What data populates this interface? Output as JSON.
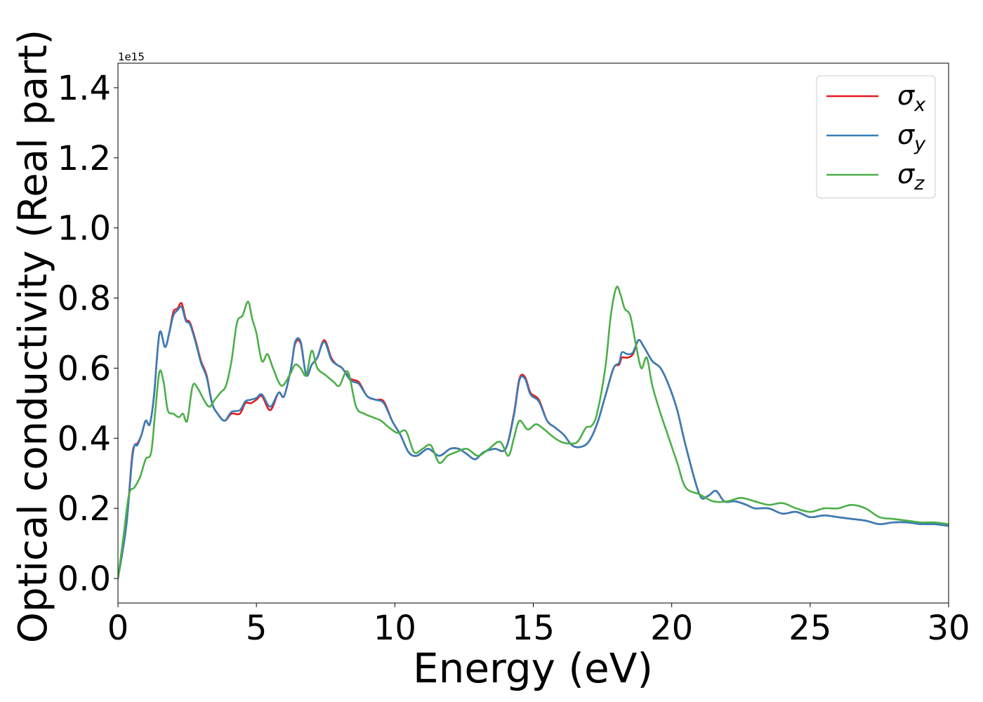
{
  "chart_data": {
    "type": "line",
    "xlabel": "Energy (eV)",
    "ylabel": "Optical conductivity (Real part)",
    "offset_label": "1e15",
    "xlim": [
      0,
      30
    ],
    "ylim": [
      -0.07,
      1.47
    ],
    "y_scale_factor": 1000000000000000.0,
    "x_ticks": [
      0,
      5,
      10,
      15,
      20,
      25,
      30
    ],
    "x_tick_labels": [
      "0",
      "5",
      "10",
      "15",
      "20",
      "25",
      "30"
    ],
    "y_ticks": [
      0.0,
      0.2,
      0.4,
      0.6,
      0.8,
      1.0,
      1.2,
      1.4
    ],
    "y_tick_labels": [
      "0.0",
      "0.2",
      "0.4",
      "0.6",
      "0.8",
      "1.0",
      "1.2",
      "1.4"
    ],
    "grid": false,
    "legend_position": "top-right",
    "series": [
      {
        "name": "σx",
        "legend_base": "σ",
        "legend_sub": "x",
        "color": "#e41a1c",
        "x": [
          0,
          0.3,
          0.5,
          0.6,
          0.7,
          0.85,
          1.0,
          1.15,
          1.3,
          1.5,
          1.7,
          1.85,
          2.0,
          2.15,
          2.3,
          2.45,
          2.6,
          2.8,
          3.0,
          3.2,
          3.4,
          3.6,
          3.85,
          4.1,
          4.4,
          4.6,
          4.8,
          5.0,
          5.2,
          5.5,
          5.8,
          6.0,
          6.25,
          6.4,
          6.6,
          6.8,
          7.0,
          7.2,
          7.45,
          7.7,
          7.9,
          8.1,
          8.4,
          8.7,
          9.0,
          9.3,
          9.6,
          9.9,
          10.2,
          10.5,
          10.8,
          11.2,
          11.6,
          12.0,
          12.3,
          12.6,
          12.9,
          13.2,
          13.6,
          14.0,
          14.3,
          14.5,
          14.7,
          14.9,
          15.2,
          15.5,
          15.8,
          16.1,
          16.4,
          16.7,
          17.0,
          17.3,
          17.6,
          17.9,
          18.1,
          18.2,
          18.4,
          18.6,
          18.8,
          19.0,
          19.3,
          19.6,
          19.9,
          20.2,
          20.5,
          21.0,
          21.3,
          21.6,
          21.9,
          22.3,
          22.7,
          23.0,
          23.5,
          24.0,
          24.5,
          25.0,
          25.5,
          26.0,
          26.5,
          27.0,
          27.5,
          28.0,
          28.5,
          29.0,
          29.5,
          30.0
        ],
        "values": [
          0.0,
          0.15,
          0.34,
          0.38,
          0.385,
          0.41,
          0.45,
          0.44,
          0.52,
          0.7,
          0.66,
          0.7,
          0.76,
          0.77,
          0.785,
          0.74,
          0.73,
          0.68,
          0.62,
          0.58,
          0.5,
          0.47,
          0.45,
          0.47,
          0.47,
          0.5,
          0.5,
          0.51,
          0.52,
          0.48,
          0.53,
          0.52,
          0.6,
          0.67,
          0.67,
          0.58,
          0.61,
          0.63,
          0.68,
          0.63,
          0.61,
          0.6,
          0.57,
          0.56,
          0.52,
          0.51,
          0.505,
          0.45,
          0.41,
          0.36,
          0.35,
          0.37,
          0.35,
          0.37,
          0.37,
          0.355,
          0.34,
          0.36,
          0.37,
          0.37,
          0.47,
          0.57,
          0.575,
          0.53,
          0.51,
          0.45,
          0.43,
          0.41,
          0.38,
          0.375,
          0.39,
          0.44,
          0.52,
          0.6,
          0.61,
          0.63,
          0.63,
          0.64,
          0.68,
          0.66,
          0.62,
          0.6,
          0.55,
          0.48,
          0.38,
          0.24,
          0.235,
          0.25,
          0.22,
          0.22,
          0.21,
          0.2,
          0.2,
          0.185,
          0.19,
          0.175,
          0.18,
          0.175,
          0.17,
          0.165,
          0.155,
          0.16,
          0.16,
          0.155,
          0.155,
          0.15
        ]
      },
      {
        "name": "σy",
        "legend_base": "σ",
        "legend_sub": "y",
        "color": "#377eb8",
        "x": [
          0,
          0.3,
          0.5,
          0.6,
          0.7,
          0.85,
          1.0,
          1.15,
          1.3,
          1.5,
          1.7,
          1.85,
          2.0,
          2.15,
          2.3,
          2.45,
          2.6,
          2.8,
          3.0,
          3.2,
          3.4,
          3.6,
          3.85,
          4.1,
          4.4,
          4.6,
          4.8,
          5.0,
          5.2,
          5.5,
          5.8,
          6.0,
          6.25,
          6.4,
          6.6,
          6.8,
          7.0,
          7.2,
          7.45,
          7.7,
          7.9,
          8.1,
          8.4,
          8.7,
          9.0,
          9.3,
          9.6,
          9.9,
          10.2,
          10.5,
          10.8,
          11.2,
          11.6,
          12.0,
          12.3,
          12.6,
          12.9,
          13.2,
          13.6,
          14.0,
          14.3,
          14.5,
          14.7,
          14.9,
          15.2,
          15.5,
          15.8,
          16.1,
          16.4,
          16.7,
          17.0,
          17.3,
          17.6,
          17.9,
          18.1,
          18.2,
          18.4,
          18.6,
          18.8,
          19.0,
          19.3,
          19.6,
          19.9,
          20.2,
          20.5,
          21.0,
          21.3,
          21.6,
          21.9,
          22.3,
          22.7,
          23.0,
          23.5,
          24.0,
          24.5,
          25.0,
          25.5,
          26.0,
          26.5,
          27.0,
          27.5,
          28.0,
          28.5,
          29.0,
          29.5,
          30.0
        ],
        "values": [
          0.0,
          0.15,
          0.33,
          0.38,
          0.38,
          0.41,
          0.45,
          0.44,
          0.52,
          0.7,
          0.66,
          0.7,
          0.75,
          0.765,
          0.775,
          0.735,
          0.725,
          0.675,
          0.615,
          0.575,
          0.5,
          0.47,
          0.45,
          0.475,
          0.48,
          0.505,
          0.51,
          0.515,
          0.525,
          0.49,
          0.53,
          0.52,
          0.6,
          0.675,
          0.675,
          0.58,
          0.61,
          0.63,
          0.675,
          0.625,
          0.61,
          0.6,
          0.565,
          0.555,
          0.52,
          0.51,
          0.5,
          0.45,
          0.41,
          0.36,
          0.35,
          0.37,
          0.35,
          0.37,
          0.37,
          0.355,
          0.34,
          0.36,
          0.37,
          0.37,
          0.465,
          0.565,
          0.57,
          0.525,
          0.505,
          0.45,
          0.43,
          0.41,
          0.38,
          0.375,
          0.39,
          0.44,
          0.52,
          0.6,
          0.615,
          0.645,
          0.64,
          0.645,
          0.68,
          0.66,
          0.62,
          0.6,
          0.55,
          0.48,
          0.38,
          0.24,
          0.235,
          0.25,
          0.22,
          0.22,
          0.21,
          0.2,
          0.2,
          0.185,
          0.19,
          0.175,
          0.18,
          0.175,
          0.17,
          0.165,
          0.155,
          0.16,
          0.16,
          0.155,
          0.155,
          0.15
        ]
      },
      {
        "name": "σz",
        "legend_base": "σ",
        "legend_sub": "z",
        "color": "#4daf4a",
        "x": [
          0,
          0.2,
          0.4,
          0.6,
          0.8,
          1.0,
          1.2,
          1.35,
          1.5,
          1.65,
          1.8,
          2.0,
          2.2,
          2.35,
          2.5,
          2.7,
          2.9,
          3.1,
          3.3,
          3.5,
          3.7,
          3.9,
          4.1,
          4.3,
          4.5,
          4.7,
          4.85,
          5.0,
          5.2,
          5.4,
          5.6,
          5.9,
          6.2,
          6.4,
          6.6,
          6.8,
          7.0,
          7.2,
          7.5,
          7.8,
          8.0,
          8.3,
          8.6,
          8.9,
          9.2,
          9.5,
          9.8,
          10.1,
          10.4,
          10.7,
          11.0,
          11.3,
          11.6,
          11.9,
          12.2,
          12.6,
          13.0,
          13.4,
          13.8,
          14.1,
          14.3,
          14.5,
          14.8,
          15.1,
          15.4,
          15.7,
          16.0,
          16.3,
          16.6,
          16.9,
          17.1,
          17.3,
          17.6,
          17.8,
          18.0,
          18.15,
          18.3,
          18.5,
          18.7,
          18.9,
          19.1,
          19.3,
          19.6,
          19.9,
          20.2,
          20.5,
          21.0,
          21.5,
          22.0,
          22.5,
          23.0,
          23.5,
          24.0,
          24.5,
          25.0,
          25.5,
          26.0,
          26.5,
          27.0,
          27.5,
          28.0,
          28.5,
          29.0,
          29.5,
          30.0
        ],
        "values": [
          0.0,
          0.12,
          0.24,
          0.26,
          0.29,
          0.34,
          0.36,
          0.48,
          0.59,
          0.56,
          0.48,
          0.47,
          0.46,
          0.47,
          0.45,
          0.55,
          0.54,
          0.51,
          0.49,
          0.51,
          0.53,
          0.55,
          0.62,
          0.73,
          0.75,
          0.79,
          0.74,
          0.7,
          0.62,
          0.64,
          0.6,
          0.55,
          0.58,
          0.61,
          0.6,
          0.58,
          0.65,
          0.6,
          0.58,
          0.56,
          0.55,
          0.59,
          0.49,
          0.47,
          0.46,
          0.45,
          0.43,
          0.415,
          0.42,
          0.36,
          0.37,
          0.38,
          0.33,
          0.35,
          0.36,
          0.37,
          0.35,
          0.37,
          0.39,
          0.35,
          0.4,
          0.45,
          0.425,
          0.44,
          0.425,
          0.405,
          0.39,
          0.385,
          0.39,
          0.43,
          0.435,
          0.47,
          0.6,
          0.75,
          0.83,
          0.81,
          0.77,
          0.75,
          0.67,
          0.6,
          0.63,
          0.55,
          0.47,
          0.4,
          0.33,
          0.26,
          0.24,
          0.22,
          0.22,
          0.23,
          0.22,
          0.21,
          0.215,
          0.2,
          0.19,
          0.2,
          0.2,
          0.21,
          0.2,
          0.175,
          0.17,
          0.165,
          0.16,
          0.16,
          0.155
        ]
      }
    ]
  }
}
